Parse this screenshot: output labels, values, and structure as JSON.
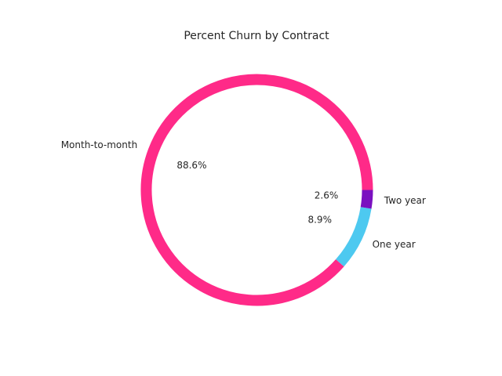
{
  "chart_data": {
    "type": "pie",
    "style": "donut-ring",
    "title": "Percent Churn by Contract",
    "categories": [
      "Month-to-month",
      "One year",
      "Two year"
    ],
    "values": [
      88.6,
      8.9,
      2.6
    ],
    "value_labels": [
      "88.6%",
      "8.9%",
      "2.6%"
    ],
    "colors": [
      "#FF2A88",
      "#4DC9F0",
      "#7A10C0"
    ],
    "start_angle_deg": 0,
    "direction": "counterclockwise"
  }
}
